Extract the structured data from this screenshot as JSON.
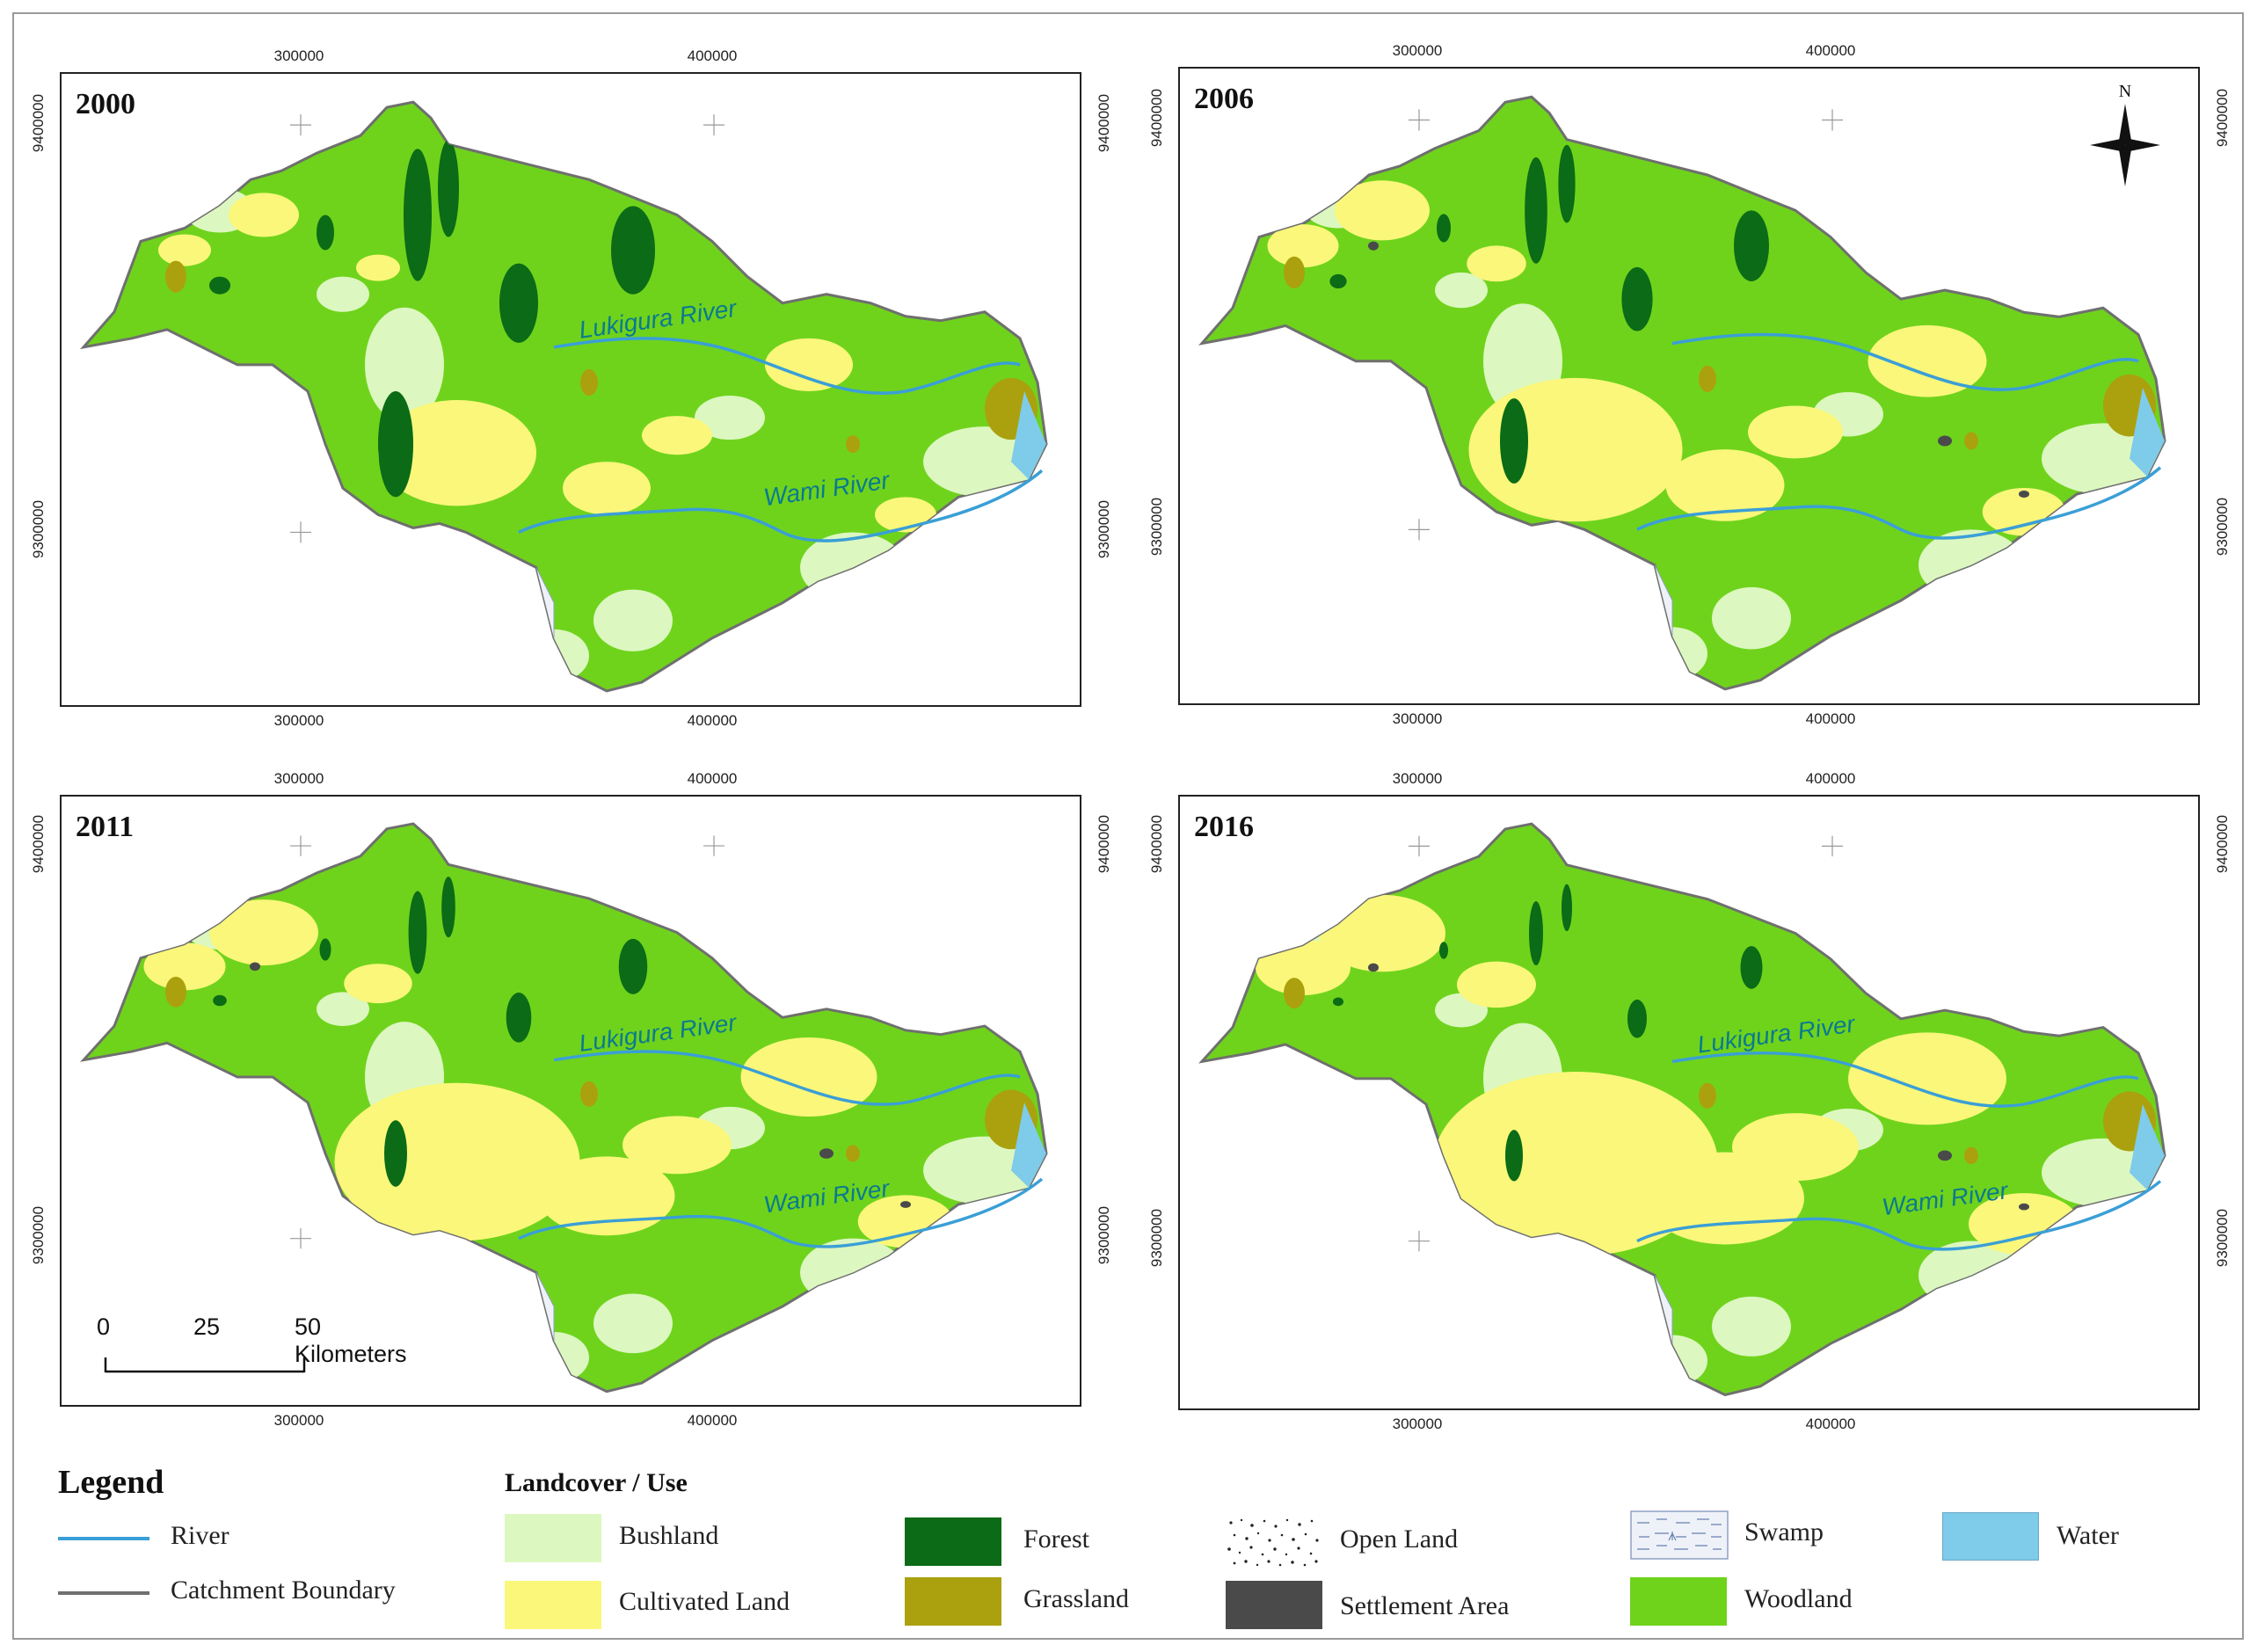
{
  "maps": [
    {
      "year": "2000",
      "river_labels": [
        "Lukigura River",
        "Wami River"
      ]
    },
    {
      "year": "2006",
      "river_labels": []
    },
    {
      "year": "2011",
      "river_labels": [
        "Lukigura River",
        "Wami River"
      ]
    },
    {
      "year": "2016",
      "river_labels": [
        "Lukigura River",
        "Wami River"
      ]
    }
  ],
  "axis_ticks": {
    "easting": [
      "300000",
      "400000"
    ],
    "northing": [
      "9400000",
      "9300000"
    ]
  },
  "north_arrow": {
    "label": "N",
    "icon": "north-arrow-icon"
  },
  "scale_bar": {
    "labels": [
      "0",
      "25",
      "50 Kilometers"
    ]
  },
  "legend": {
    "title": "Legend",
    "subtitle": "Landcover / Use",
    "lines": [
      {
        "label": "River",
        "color": "#3a9fd6"
      },
      {
        "label": "Catchment Boundary",
        "color": "#6f6f6f"
      }
    ],
    "classes": [
      {
        "label": "Bushland",
        "color": "#dcf7c0"
      },
      {
        "label": "Cultivated Land",
        "color": "#faf77a"
      },
      {
        "label": "Forest",
        "color": "#0b6b16"
      },
      {
        "label": "Grassland",
        "color": "#aba10e"
      },
      {
        "label": "Open Land",
        "color": "#ffffff"
      },
      {
        "label": "Settlement Area",
        "color": "#4a4a4a"
      },
      {
        "label": "Swamp",
        "color": "#eef2f8"
      },
      {
        "label": "Woodland",
        "color": "#6fd31c"
      },
      {
        "label": "Water",
        "color": "#7ecbea"
      }
    ]
  }
}
